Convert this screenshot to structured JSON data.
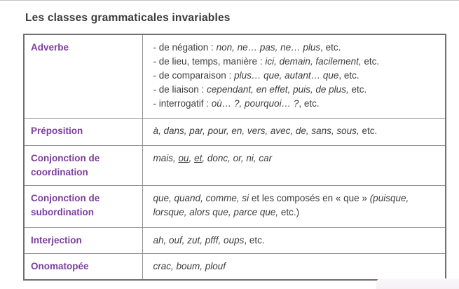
{
  "page": {
    "title": "Les classes grammaticales invariables"
  },
  "colors": {
    "accent_purple": "#7c3f9e",
    "body_text": "#3d3d3d",
    "outer_border": "#6f6f6f",
    "inner_border": "#8f8f8f",
    "top_line": "#c4c4c4"
  },
  "table": {
    "rows": [
      {
        "key": "adverbe",
        "label": "Adverbe",
        "lines": [
          [
            {
              "t": "- de négation : "
            },
            {
              "t": "non, ne… pas, ne… plus",
              "i": true
            },
            {
              "t": ", etc."
            }
          ],
          [
            {
              "t": "- de lieu, temps, manière : "
            },
            {
              "t": "ici, demain, facilement,",
              "i": true
            },
            {
              "t": " etc."
            }
          ],
          [
            {
              "t": "- de comparaison : "
            },
            {
              "t": "plus… que, autant… que",
              "i": true
            },
            {
              "t": ", etc."
            }
          ],
          [
            {
              "t": "- de liaison : "
            },
            {
              "t": "cependant, en effet, puis, de plus,",
              "i": true
            },
            {
              "t": " etc."
            }
          ],
          [
            {
              "t": "- interrogatif : "
            },
            {
              "t": "où… ?, pourquoi… ?",
              "i": true
            },
            {
              "t": ", etc."
            }
          ]
        ]
      },
      {
        "key": "preposition",
        "label": "Préposition",
        "lines": [
          [
            {
              "t": "à, dans, par, pour, en, vers, avec, de, sans, sous,",
              "i": true
            },
            {
              "t": " etc."
            }
          ]
        ]
      },
      {
        "key": "conj-coord",
        "label": "Conjonction de coordination",
        "lines": [
          [
            {
              "t": "mais, ",
              "i": true
            },
            {
              "t": "ou",
              "i": true,
              "u": true
            },
            {
              "t": ", ",
              "i": true
            },
            {
              "t": "et",
              "i": true,
              "u": true
            },
            {
              "t": ", donc, or, ni, car",
              "i": true
            }
          ]
        ]
      },
      {
        "key": "conj-subord",
        "label": "Conjonction de subordination",
        "lines": [
          [
            {
              "t": "que, quand, comme, si",
              "i": true
            },
            {
              "t": " et les composés en « que » "
            },
            {
              "t": "(puisque, lorsque, alors que, parce que,",
              "i": true
            },
            {
              "t": " etc.)"
            }
          ]
        ]
      },
      {
        "key": "interjection",
        "label": "Interjection",
        "lines": [
          [
            {
              "t": "ah, ouf, zut, pfff, oups",
              "i": true
            },
            {
              "t": ", etc."
            }
          ]
        ]
      },
      {
        "key": "onomatopee",
        "label": "Onomatopée",
        "lines": [
          [
            {
              "t": "crac, boum, plouf",
              "i": true
            }
          ]
        ]
      }
    ]
  }
}
